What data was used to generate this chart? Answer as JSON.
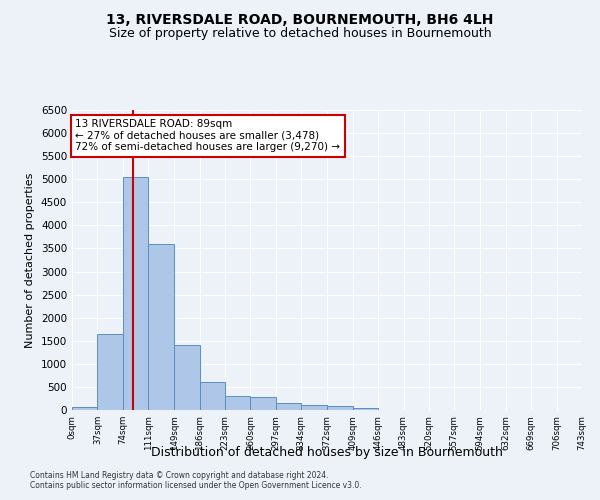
{
  "title": "13, RIVERSDALE ROAD, BOURNEMOUTH, BH6 4LH",
  "subtitle": "Size of property relative to detached houses in Bournemouth",
  "xlabel": "Distribution of detached houses by size in Bournemouth",
  "ylabel": "Number of detached properties",
  "footer_line1": "Contains HM Land Registry data © Crown copyright and database right 2024.",
  "footer_line2": "Contains public sector information licensed under the Open Government Licence v3.0.",
  "bin_edges": [
    0,
    37,
    74,
    111,
    149,
    186,
    223,
    260,
    297,
    334,
    372,
    409,
    446,
    483,
    520,
    557,
    594,
    632,
    669,
    706,
    743
  ],
  "bar_heights": [
    75,
    1650,
    5050,
    3600,
    1400,
    610,
    300,
    285,
    145,
    110,
    80,
    50,
    10,
    0,
    0,
    0,
    0,
    0,
    0,
    0
  ],
  "bar_color": "#aec6e8",
  "bar_edge_color": "#5a8fc2",
  "property_size": 89,
  "vline_color": "#cc0000",
  "annotation_text": "13 RIVERSDALE ROAD: 89sqm\n← 27% of detached houses are smaller (3,478)\n72% of semi-detached houses are larger (9,270) →",
  "annotation_box_color": "#ffffff",
  "annotation_box_edge": "#cc0000",
  "ylim": [
    0,
    6500
  ],
  "yticks": [
    0,
    500,
    1000,
    1500,
    2000,
    2500,
    3000,
    3500,
    4000,
    4500,
    5000,
    5500,
    6000,
    6500
  ],
  "bg_color": "#edf2f9",
  "plot_bg_color": "#edf2f9",
  "grid_color": "#ffffff",
  "title_fontsize": 10,
  "subtitle_fontsize": 9,
  "xlabel_fontsize": 9,
  "ylabel_fontsize": 8,
  "tick_labels": [
    "0sqm",
    "37sqm",
    "74sqm",
    "111sqm",
    "149sqm",
    "186sqm",
    "223sqm",
    "260sqm",
    "297sqm",
    "334sqm",
    "372sqm",
    "409sqm",
    "446sqm",
    "483sqm",
    "520sqm",
    "557sqm",
    "594sqm",
    "632sqm",
    "669sqm",
    "706sqm",
    "743sqm"
  ]
}
